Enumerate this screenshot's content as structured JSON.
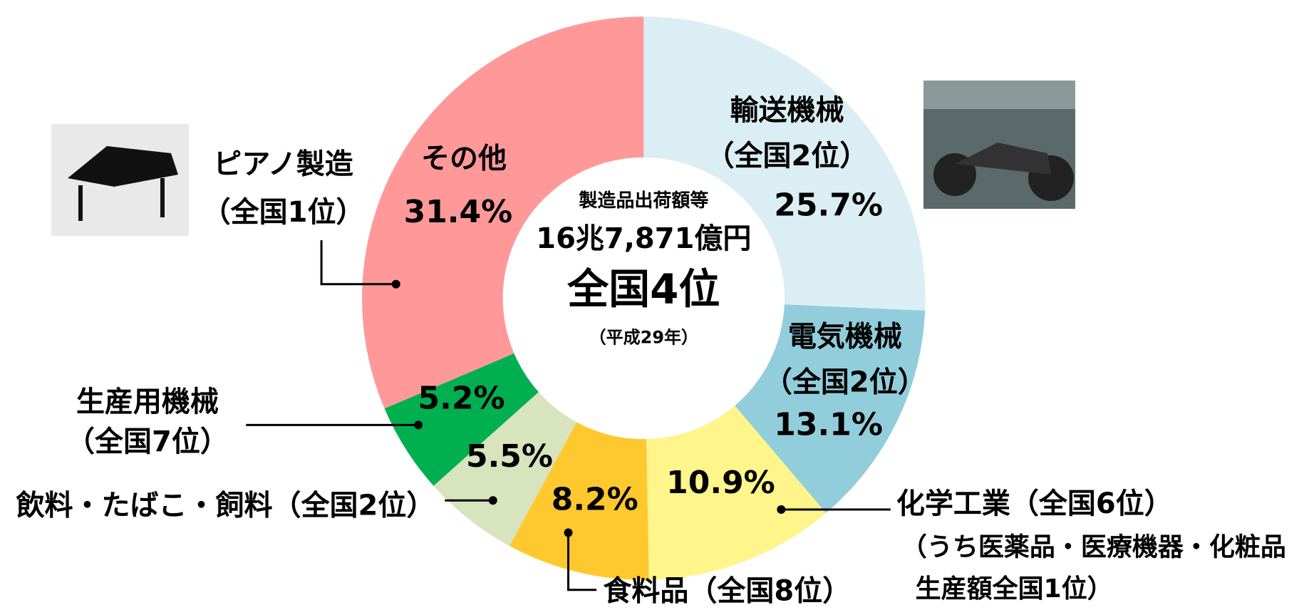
{
  "chart_data": {
    "type": "donut",
    "categories": [
      "輸送機械",
      "電気機械",
      "化学工業",
      "食料品",
      "飲料・たばこ・飼料",
      "生産用機械",
      "その他"
    ],
    "ranks": [
      "（全国2位）",
      "（全国2位）",
      "（全国6位）",
      "（全国8位）",
      "（全国2位）",
      "（全国7位）",
      null
    ],
    "values": [
      25.7,
      13.1,
      10.9,
      8.2,
      5.5,
      5.2,
      31.4
    ],
    "value_labels": [
      "25.7%",
      "13.1%",
      "10.9%",
      "8.2%",
      "5.5%",
      "5.2%",
      "31.4%"
    ],
    "colors": [
      "#dbeef4",
      "#92cddc",
      "#fff58a",
      "#ffc82e",
      "#d7e4bd",
      "#00b050",
      "#ff9999"
    ],
    "center_text": [
      "製造品出荷額等",
      "16兆7,871億円",
      "全国4位",
      "（平成29年）"
    ],
    "annotations": [
      "（うち医薬品・医療機器・化粧品",
      "生産額全国1位）",
      "ピアノ製造",
      "（全国1位）"
    ]
  }
}
